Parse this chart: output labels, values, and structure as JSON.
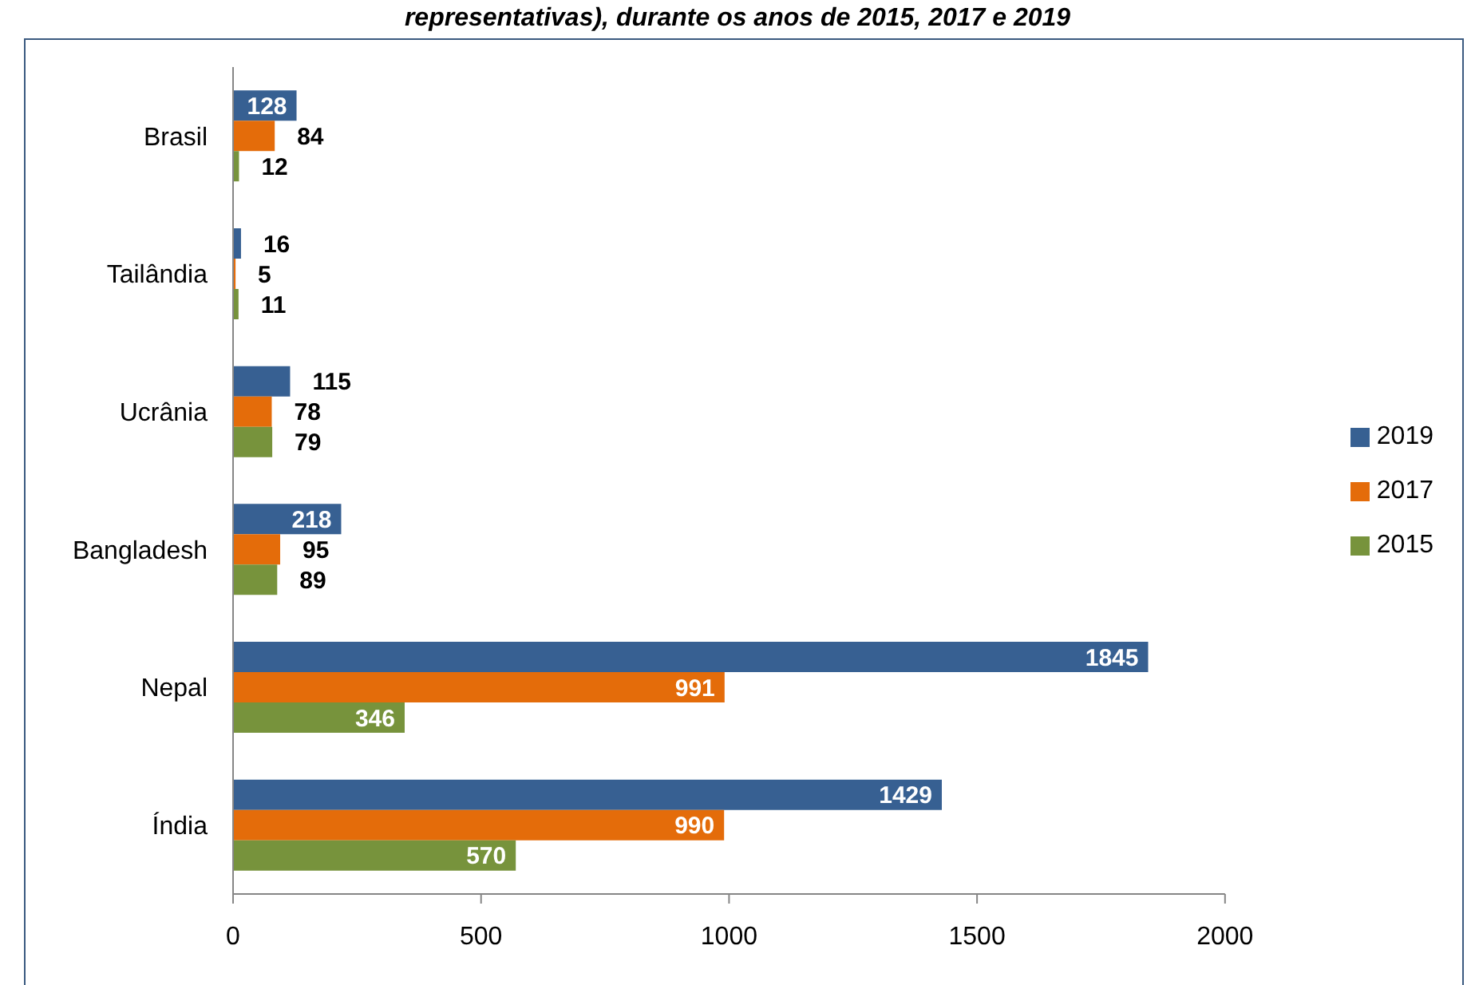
{
  "chart_data": {
    "type": "bar",
    "orientation": "horizontal",
    "title": "representativas), durante os anos de 2015, 2017 e 2019",
    "categories": [
      "Brasil",
      "Tailândia",
      "Ucrânia",
      "Bangladesh",
      "Nepal",
      "Índia"
    ],
    "series": [
      {
        "name": "2019",
        "color": "#376092",
        "values": [
          128,
          16,
          115,
          218,
          1845,
          1429
        ]
      },
      {
        "name": "2017",
        "color": "#e46c0a",
        "values": [
          84,
          5,
          78,
          95,
          991,
          990
        ]
      },
      {
        "name": "2015",
        "color": "#77933c",
        "values": [
          12,
          11,
          79,
          89,
          346,
          570
        ]
      }
    ],
    "xlim": [
      0,
      2000
    ],
    "xticks": [
      0,
      500,
      1000,
      1500,
      2000
    ],
    "data_labels": true,
    "legend": "right"
  }
}
